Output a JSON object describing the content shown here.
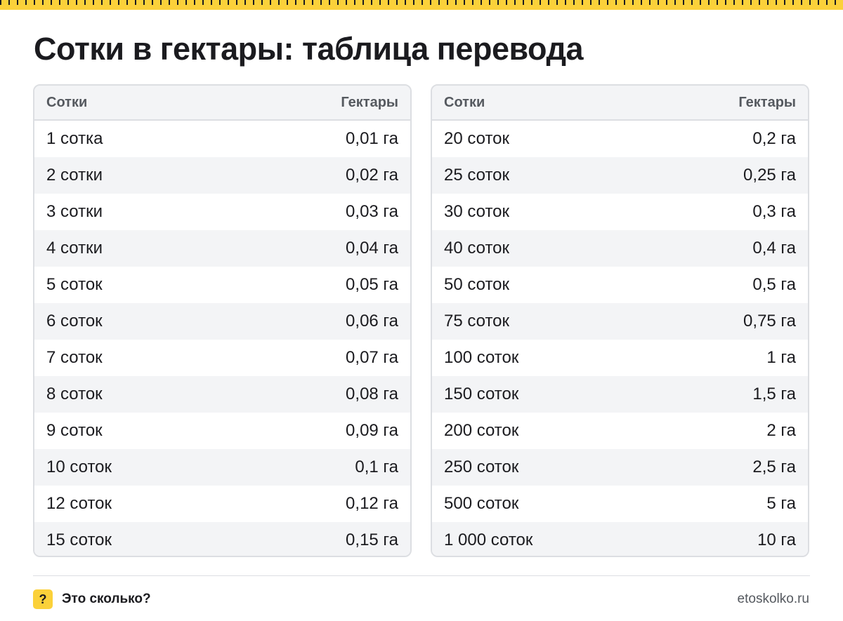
{
  "title": "Сотки в гектары: таблица перевода",
  "columns": {
    "left": "Сотки",
    "right": "Гектары"
  },
  "table_left": [
    [
      "1 сотка",
      "0,01 га"
    ],
    [
      "2 сотки",
      "0,02 га"
    ],
    [
      "3 сотки",
      "0,03 га"
    ],
    [
      "4 сотки",
      "0,04 га"
    ],
    [
      "5 соток",
      "0,05 га"
    ],
    [
      "6 соток",
      "0,06 га"
    ],
    [
      "7 соток",
      "0,07 га"
    ],
    [
      "8 соток",
      "0,08 га"
    ],
    [
      "9 соток",
      "0,09 га"
    ],
    [
      "10 соток",
      "0,1 га"
    ],
    [
      "12 соток",
      "0,12 га"
    ],
    [
      "15 соток",
      "0,15 га"
    ]
  ],
  "table_right": [
    [
      "20 соток",
      "0,2 га"
    ],
    [
      "25 соток",
      "0,25 га"
    ],
    [
      "30 соток",
      "0,3 га"
    ],
    [
      "40 соток",
      "0,4 га"
    ],
    [
      "50 соток",
      "0,5 га"
    ],
    [
      "75 соток",
      "0,75 га"
    ],
    [
      "100 соток",
      "1 га"
    ],
    [
      "150 соток",
      "1,5 га"
    ],
    [
      "200 соток",
      "2 га"
    ],
    [
      "250 соток",
      "2,5 га"
    ],
    [
      "500 соток",
      "5 га"
    ],
    [
      "1 000 соток",
      "10 га"
    ]
  ],
  "footer": {
    "badge": "?",
    "brand": "Это сколько?",
    "site": "etoskolko.ru"
  },
  "colors": {
    "accent": "#fbd13a",
    "text": "#1b1b1f",
    "muted": "#55595f",
    "stripe": "#f3f4f6",
    "border": "#dcdee2"
  }
}
